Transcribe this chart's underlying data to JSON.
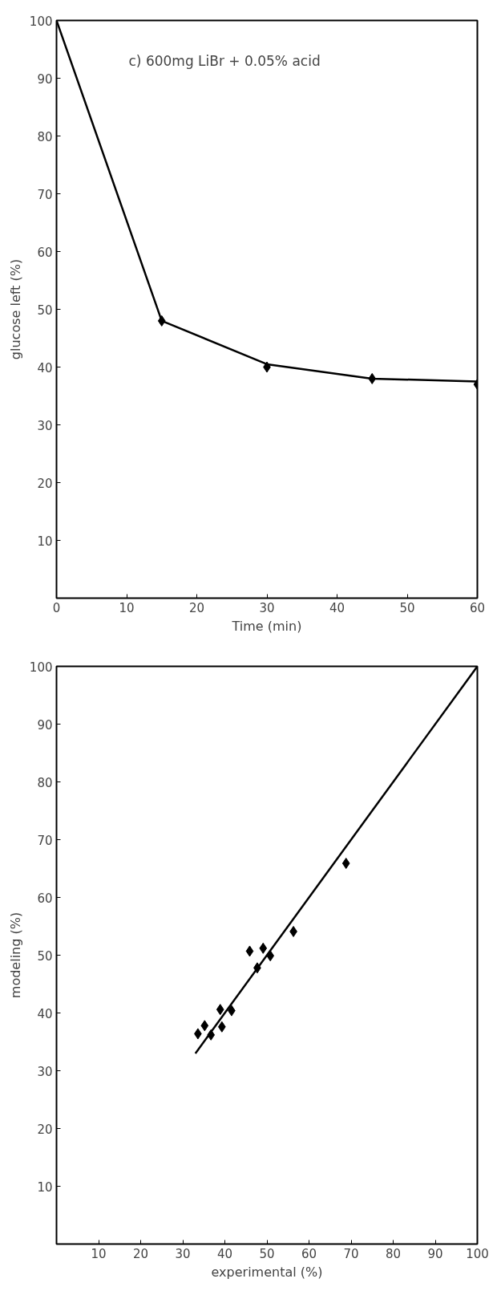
{
  "chart_data": [
    {
      "type": "scatter",
      "xlabel": "Time (min)",
      "ylabel": "glucose left (%)",
      "annotations": [
        "c) 600mg LiBr + 0.05% acid"
      ],
      "xlim": [
        0,
        60
      ],
      "xticks": [
        0,
        10,
        20,
        30,
        40,
        50,
        60
      ],
      "ylim": [
        0,
        100
      ],
      "yticks": [
        10,
        20,
        30,
        40,
        50,
        60,
        70,
        80,
        90,
        100
      ],
      "grid": false,
      "series": [
        {
          "type": "line",
          "color": "#000000",
          "x": [
            0,
            15,
            30,
            45,
            60
          ],
          "values": [
            100,
            48,
            40.5,
            38,
            37.5
          ]
        },
        {
          "marker": "diamond",
          "color": "#000000",
          "x": [
            15,
            30,
            45,
            60
          ],
          "values": [
            48,
            40,
            38,
            37
          ]
        }
      ]
    },
    {
      "type": "scatter",
      "xlabel": "experimental (%)",
      "ylabel": "modeling (%)",
      "xlim": [
        0,
        100
      ],
      "xticks": [
        10,
        20,
        30,
        40,
        50,
        60,
        70,
        80,
        90,
        100
      ],
      "ylim": [
        0,
        100
      ],
      "yticks": [
        10,
        20,
        30,
        40,
        50,
        60,
        70,
        80,
        90,
        100
      ],
      "grid": false,
      "series": [
        {
          "type": "line",
          "color": "#000000",
          "x": [
            33,
            100
          ],
          "values": [
            33,
            100
          ]
        },
        {
          "marker": "diamond",
          "color": "#000000",
          "x": [
            68.8,
            56.3,
            50.8,
            49.1,
            47.7,
            45.9,
            41.6,
            38.9,
            39.3,
            36.7,
            35.2,
            33.6
          ],
          "values": [
            65.9,
            54.1,
            49.9,
            51.2,
            47.8,
            50.7,
            40.4,
            40.6,
            37.6,
            36.2,
            37.8,
            36.4
          ]
        }
      ]
    }
  ]
}
